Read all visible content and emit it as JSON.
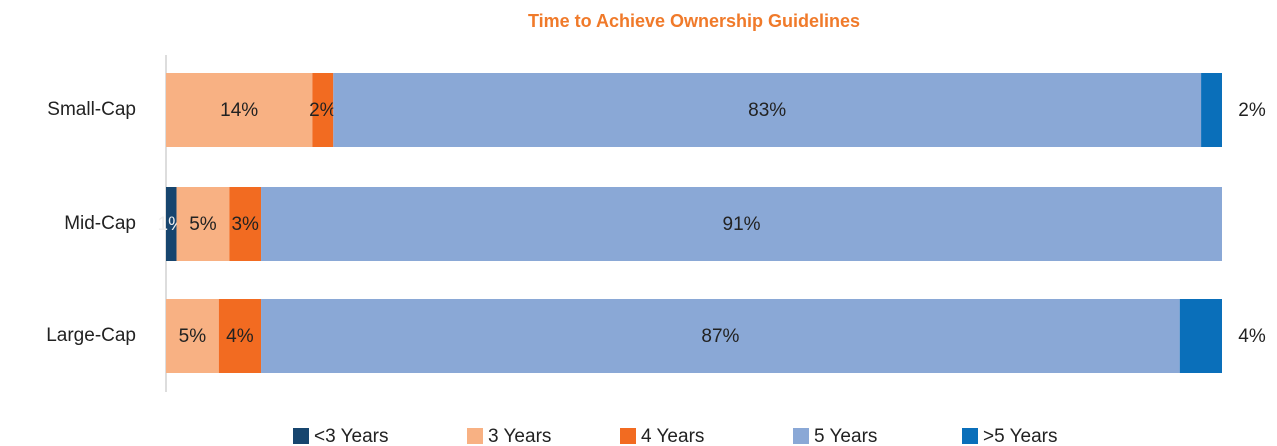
{
  "chart_data": {
    "type": "stacked-bar-horizontal",
    "title": "Time to Achieve Ownership Guidelines",
    "categories": [
      "Small-Cap",
      "Mid-Cap",
      "Large-Cap"
    ],
    "series": [
      {
        "name": "<3 Years",
        "color": "#17456e",
        "values": [
          null,
          1,
          null
        ],
        "value_labels": [
          null,
          "1%",
          null
        ]
      },
      {
        "name": "3 Years",
        "color": "#f8b183",
        "values": [
          14,
          5,
          5
        ],
        "value_labels": [
          "14%",
          "5%",
          "5%"
        ]
      },
      {
        "name": "4 Years",
        "color": "#f26b21",
        "values": [
          2,
          3,
          4
        ],
        "value_labels": [
          "2%",
          "3%",
          "4%"
        ]
      },
      {
        "name": "5 Years",
        "color": "#8aa8d6",
        "values": [
          83,
          91,
          87
        ],
        "value_labels": [
          "83%",
          "91%",
          "87%"
        ]
      },
      {
        "name": ">5 Years",
        "color": "#0a6fba",
        "values": [
          2,
          null,
          4
        ],
        "value_labels": [
          "2%",
          null,
          "4%"
        ]
      }
    ]
  }
}
